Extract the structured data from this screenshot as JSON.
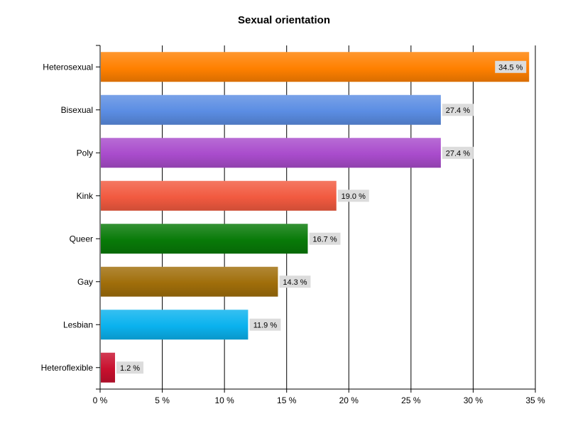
{
  "chart_data": {
    "type": "bar",
    "orientation": "horizontal",
    "title": "Sexual orientation",
    "xlabel": "",
    "ylabel": "",
    "categories": [
      "Heterosexual",
      "Bisexual",
      "Poly",
      "Kink",
      "Queer",
      "Gay",
      "Lesbian",
      "Heteroflexible"
    ],
    "values": [
      34.5,
      27.4,
      27.4,
      19.0,
      16.7,
      14.3,
      11.9,
      1.2
    ],
    "value_labels": [
      "34.5 %",
      "27.4 %",
      "27.4 %",
      "19.0 %",
      "16.7 %",
      "14.3 %",
      "11.9 %",
      "1.2 %"
    ],
    "colors": [
      "#ff8000",
      "#5b8de3",
      "#a94ccc",
      "#f25a40",
      "#087a08",
      "#a06e0a",
      "#0ab2ee",
      "#c8102e"
    ],
    "xlim": [
      0,
      35
    ],
    "x_ticks": [
      0,
      5,
      10,
      15,
      20,
      25,
      30,
      35
    ],
    "x_tick_labels": [
      "0 %",
      "5 %",
      "10 %",
      "15 %",
      "20 %",
      "25 %",
      "30 %",
      "35 %"
    ],
    "grid": true,
    "legend": "none"
  }
}
